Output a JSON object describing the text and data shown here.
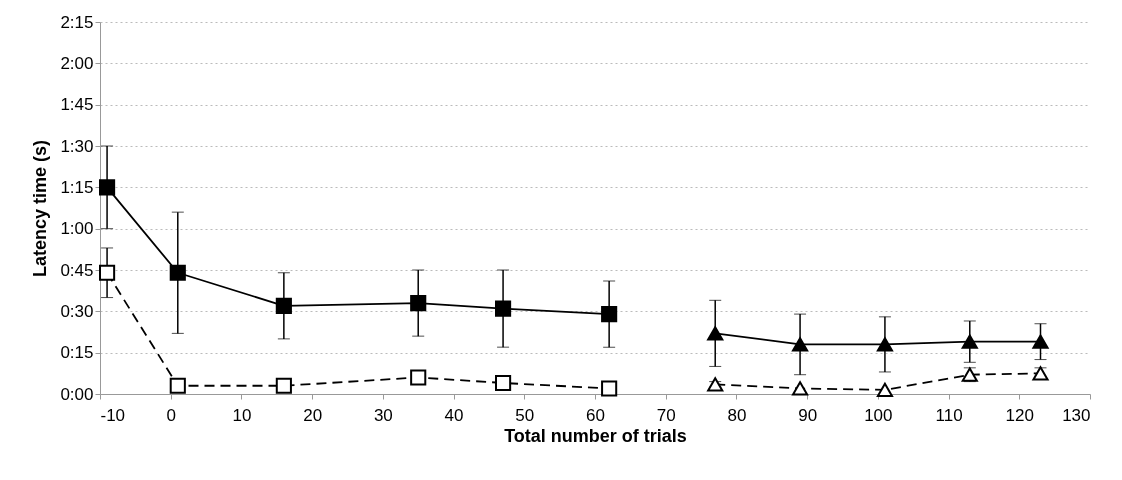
{
  "chart_data": {
    "type": "line",
    "xlabel": "Total number of trials",
    "ylabel": "Latency time (s)",
    "xlim": [
      -10,
      130
    ],
    "xticks": [
      -10,
      0,
      10,
      20,
      30,
      40,
      50,
      60,
      70,
      80,
      90,
      100,
      110,
      120,
      130
    ],
    "ylim": [
      0,
      135
    ],
    "yticks": [
      {
        "value": 0,
        "label": "0:00"
      },
      {
        "value": 15,
        "label": "0:15"
      },
      {
        "value": 30,
        "label": "0:30"
      },
      {
        "value": 45,
        "label": "0:45"
      },
      {
        "value": 60,
        "label": "1:00"
      },
      {
        "value": 75,
        "label": "1:15"
      },
      {
        "value": 90,
        "label": "1:30"
      },
      {
        "value": 105,
        "label": "1:45"
      },
      {
        "value": 120,
        "label": "2:00"
      },
      {
        "value": 135,
        "label": "2:15"
      }
    ],
    "grid": "y",
    "series": [
      {
        "color": "#000000",
        "marker": "square",
        "line_style": "solid",
        "x": [
          -9,
          1,
          16,
          35,
          47,
          62
        ],
        "values": [
          75,
          44,
          32,
          33,
          31,
          29
        ],
        "errors": [
          15,
          22,
          12,
          12,
          14,
          12
        ]
      },
      {
        "color": "#000000",
        "marker": "square",
        "line_style": "dashed",
        "x": [
          -9,
          1,
          16,
          35,
          47,
          62
        ],
        "values": [
          44,
          3,
          3,
          6,
          4,
          2
        ],
        "errors": [
          9,
          null,
          null,
          1.5,
          null,
          null
        ]
      },
      {
        "color": "#000000",
        "marker": "triangle",
        "line_style": "solid",
        "x": [
          77,
          89,
          101,
          113,
          123
        ],
        "values": [
          22,
          18,
          18,
          19,
          19
        ],
        "errors": [
          12,
          11,
          10,
          7.5,
          6.5
        ]
      },
      {
        "color": "#000000",
        "marker": "triangle",
        "line_style": "dashed",
        "x": [
          77,
          89,
          101,
          113,
          123
        ],
        "values": [
          3.5,
          2,
          1.5,
          7,
          7.5
        ],
        "errors": [
          1,
          null,
          null,
          2.5,
          2
        ]
      }
    ]
  }
}
